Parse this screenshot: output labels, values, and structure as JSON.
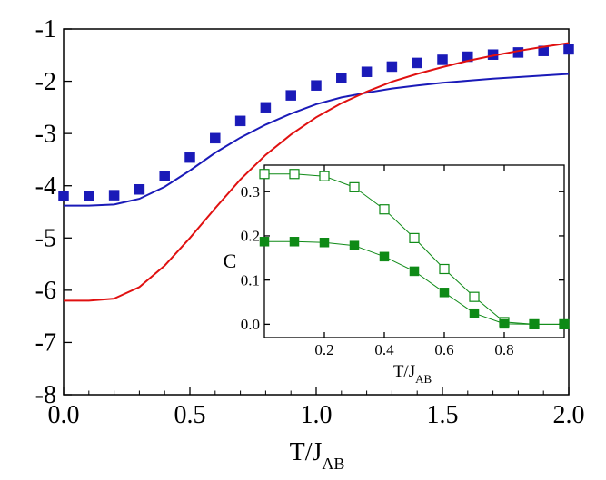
{
  "chart_data": [
    {
      "type": "line",
      "title": "",
      "xlabel": "T/J",
      "xlabel_sub": "AB",
      "ylabel": "",
      "xlim": [
        0.0,
        2.0
      ],
      "ylim": [
        -8,
        -1
      ],
      "x_ticks": [
        0.0,
        0.5,
        1.0,
        1.5,
        2.0
      ],
      "x_tick_labels": [
        "0.0",
        "0.5",
        "1.0",
        "1.5",
        "2.0"
      ],
      "y_ticks": [
        -8,
        -7,
        -6,
        -5,
        -4,
        -3,
        -2,
        -1
      ],
      "y_tick_labels": [
        "-8",
        "-7",
        "-6",
        "-5",
        "-4",
        "-3",
        "-2",
        "-1"
      ],
      "grid": false,
      "series": [
        {
          "name": "blue squares",
          "style": "markers-filled-square",
          "color": "#1a1ab8",
          "x": [
            0.0,
            0.1,
            0.2,
            0.3,
            0.4,
            0.5,
            0.6,
            0.7,
            0.8,
            0.9,
            1.0,
            1.1,
            1.2,
            1.3,
            1.4,
            1.5,
            1.6,
            1.7,
            1.8,
            1.9,
            2.0
          ],
          "y": [
            -4.2,
            -4.2,
            -4.18,
            -4.07,
            -3.81,
            -3.46,
            -3.09,
            -2.76,
            -2.5,
            -2.27,
            -2.08,
            -1.94,
            -1.82,
            -1.72,
            -1.65,
            -1.59,
            -1.53,
            -1.49,
            -1.45,
            -1.42,
            -1.39
          ]
        },
        {
          "name": "blue line",
          "style": "line",
          "color": "#1a1ab8",
          "x": [
            0.0,
            0.1,
            0.2,
            0.3,
            0.4,
            0.5,
            0.6,
            0.7,
            0.8,
            0.9,
            1.0,
            1.1,
            1.2,
            1.3,
            1.4,
            1.5,
            1.6,
            1.7,
            1.8,
            1.9,
            2.0
          ],
          "y": [
            -4.38,
            -4.38,
            -4.36,
            -4.25,
            -4.02,
            -3.71,
            -3.37,
            -3.08,
            -2.83,
            -2.62,
            -2.44,
            -2.31,
            -2.22,
            -2.14,
            -2.08,
            -2.03,
            -1.99,
            -1.95,
            -1.92,
            -1.89,
            -1.86
          ]
        },
        {
          "name": "red line",
          "style": "line",
          "color": "#e01010",
          "x": [
            0.0,
            0.1,
            0.2,
            0.3,
            0.4,
            0.5,
            0.6,
            0.7,
            0.8,
            0.9,
            1.0,
            1.1,
            1.2,
            1.3,
            1.4,
            1.5,
            1.6,
            1.7,
            1.8,
            1.9,
            2.0
          ],
          "y": [
            -6.2,
            -6.2,
            -6.16,
            -5.94,
            -5.53,
            -5.0,
            -4.43,
            -3.88,
            -3.41,
            -3.02,
            -2.69,
            -2.42,
            -2.2,
            -2.01,
            -1.86,
            -1.73,
            -1.61,
            -1.51,
            -1.42,
            -1.34,
            -1.27
          ]
        }
      ]
    },
    {
      "type": "line",
      "title": "",
      "xlabel": "T/J",
      "xlabel_sub": "AB",
      "ylabel": "C",
      "xlim": [
        0.0,
        1.0
      ],
      "ylim": [
        -0.03,
        0.36
      ],
      "x_ticks": [
        0.2,
        0.4,
        0.6,
        0.8
      ],
      "x_tick_labels": [
        "0.2",
        "0.4",
        "0.6",
        "0.8"
      ],
      "y_ticks": [
        0.0,
        0.1,
        0.2,
        0.3
      ],
      "y_tick_labels": [
        "0.0",
        "0.1",
        "0.2",
        "0.3"
      ],
      "grid": false,
      "legend_position": "none",
      "series": [
        {
          "name": "open squares",
          "style": "line-open-square",
          "color": "#0e8a16",
          "x": [
            0.0,
            0.1,
            0.2,
            0.3,
            0.4,
            0.5,
            0.6,
            0.7,
            0.8,
            0.9,
            1.0
          ],
          "y": [
            0.34,
            0.34,
            0.335,
            0.31,
            0.26,
            0.195,
            0.125,
            0.062,
            0.005,
            0.0,
            0.0
          ]
        },
        {
          "name": "filled squares",
          "style": "line-filled-square",
          "color": "#0e8a16",
          "x": [
            0.0,
            0.1,
            0.2,
            0.3,
            0.4,
            0.5,
            0.6,
            0.7,
            0.8,
            0.9,
            1.0
          ],
          "y": [
            0.187,
            0.187,
            0.185,
            0.178,
            0.153,
            0.12,
            0.072,
            0.025,
            0.001,
            0.0,
            0.0
          ]
        }
      ]
    }
  ]
}
